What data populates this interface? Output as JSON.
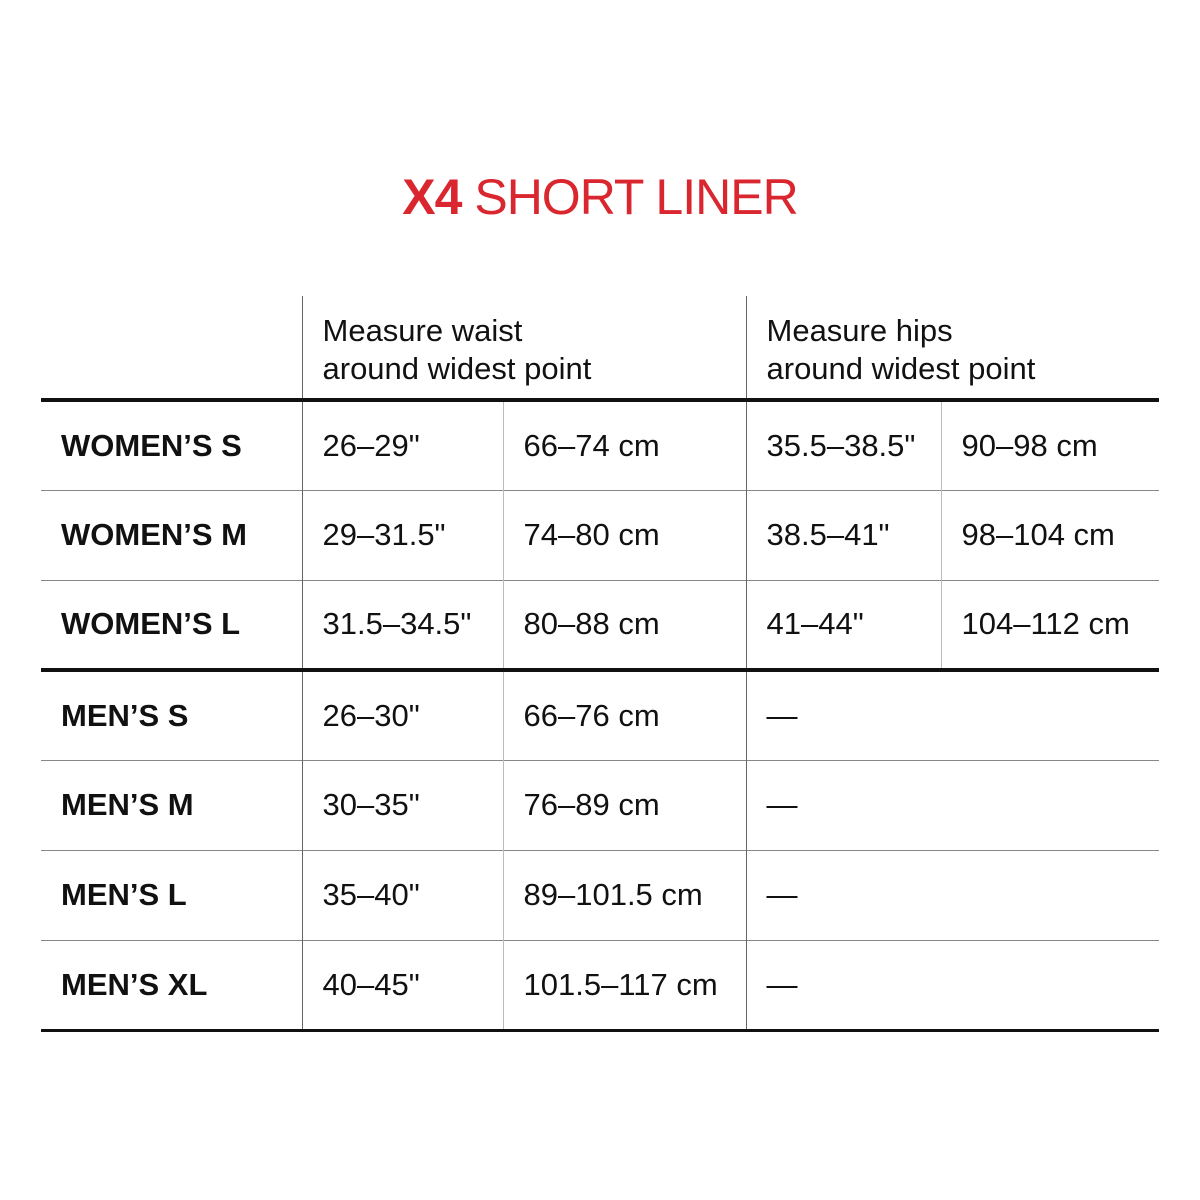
{
  "title": {
    "bold": "X4",
    "rest": " SHORT LINER",
    "color": "#d9262f"
  },
  "headers": {
    "waist": [
      "Measure waist",
      "around widest point"
    ],
    "hips": [
      "Measure hips",
      "around widest point"
    ]
  },
  "rows": [
    {
      "label": "WOMEN’S S",
      "waist_in": "26–29\"",
      "waist_cm": "66–74 cm",
      "hips_in": "35.5–38.5\"",
      "hips_cm": "90–98 cm"
    },
    {
      "label": "WOMEN’S M",
      "waist_in": "29–31.5\"",
      "waist_cm": "74–80 cm",
      "hips_in": "38.5–41\"",
      "hips_cm": "98–104 cm"
    },
    {
      "label": "WOMEN’S L",
      "waist_in": "31.5–34.5\"",
      "waist_cm": "80–88 cm",
      "hips_in": "41–44\"",
      "hips_cm": "104–112 cm"
    },
    {
      "label": "MEN’S S",
      "waist_in": "26–30\"",
      "waist_cm": "66–76 cm",
      "hips": "—"
    },
    {
      "label": "MEN’S M",
      "waist_in": "30–35\"",
      "waist_cm": "76–89 cm",
      "hips": "—"
    },
    {
      "label": "MEN’S L",
      "waist_in": "35–40\"",
      "waist_cm": "89–101.5 cm",
      "hips": "—"
    },
    {
      "label": "MEN’S XL",
      "waist_in": "40–45\"",
      "waist_cm": "101.5–117 cm",
      "hips": "—"
    }
  ]
}
